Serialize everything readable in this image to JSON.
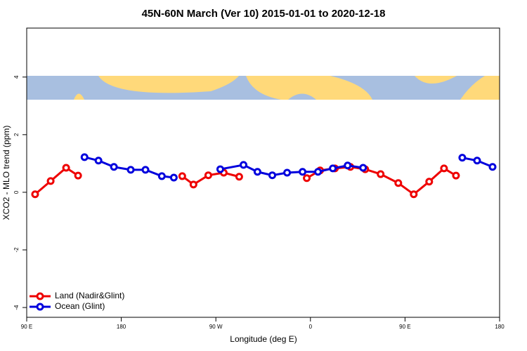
{
  "chart_data": {
    "type": "line",
    "title": "45N-60N March (Ver 10)   2015-01-01 to 2020-12-18",
    "x_label": "Longitude (deg E)",
    "y_label": "XCO2 - MLO trend (ppm)",
    "xlim": [
      90,
      540
    ],
    "xticks": [
      {
        "value": 90,
        "label": "90 E"
      },
      180,
      {
        "value": 270,
        "label": "90 W"
      },
      {
        "value": 360,
        "label": "0"
      },
      {
        "value": 450,
        "label": "90 E"
      },
      {
        "value": 540,
        "label": "180"
      }
    ],
    "ylim": [
      -4.34,
      5.7
    ],
    "yticks": [
      -4,
      -2,
      0,
      2,
      4
    ],
    "legend": "bottom-left",
    "series": [
      {
        "name": "Land (Nadir&Glint)",
        "color": "#ee0000",
        "x": [
          98,
          112.8,
          127.5,
          138.9,
          null,
          238,
          248.7,
          262.8,
          277.5,
          292.2,
          null,
          356.5,
          369.2,
          383.3,
          398,
          412.1,
          426.8,
          443.6,
          458.3,
          473,
          487.1,
          498.5
        ],
        "values": [
          -0.07,
          0.39,
          0.85,
          0.58,
          null,
          0.56,
          0.27,
          0.59,
          0.68,
          0.54,
          null,
          0.49,
          0.76,
          0.83,
          0.88,
          0.8,
          0.63,
          0.32,
          -0.07,
          0.37,
          0.83,
          0.58
        ]
      },
      {
        "name": "Ocean (Glint)",
        "color": "#0000dd",
        "x": [
          145,
          158.3,
          173,
          189,
          203,
          218.6,
          230,
          null,
          274.2,
          296.3,
          309.6,
          323.7,
          337.8,
          352.5,
          367.2,
          381.3,
          395.4,
          410.1,
          null,
          504.5,
          518.6,
          533.3
        ],
        "values": [
          1.22,
          1.1,
          0.88,
          0.78,
          0.78,
          0.56,
          0.51,
          null,
          0.8,
          0.95,
          0.71,
          0.59,
          0.68,
          0.71,
          0.71,
          0.83,
          0.93,
          0.85,
          null,
          1.2,
          1.1,
          0.88
        ]
      }
    ]
  }
}
